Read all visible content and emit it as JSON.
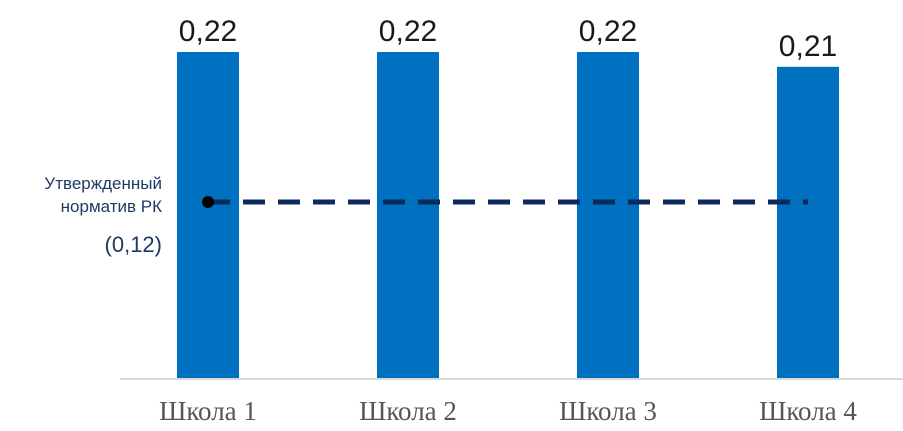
{
  "chart_data": {
    "type": "bar",
    "categories": [
      "Школа 1",
      "Школа 2",
      "Школа 3",
      "Школа 4"
    ],
    "values": [
      0.22,
      0.22,
      0.22,
      0.21
    ],
    "value_labels": [
      "0,22",
      "0,22",
      "0,22",
      "0,21"
    ],
    "ylim": [
      0,
      0.22
    ],
    "grid": false,
    "legend": "none",
    "reference_line": {
      "value": 0.12,
      "label_line1": "Утвержденный",
      "label_line2": "норматив РК",
      "value_label": "(0,12)",
      "style": "dashed",
      "color": "#0d2a5c"
    },
    "colors": {
      "bar": "#0070c0",
      "axis": "#d9d9d9"
    }
  }
}
